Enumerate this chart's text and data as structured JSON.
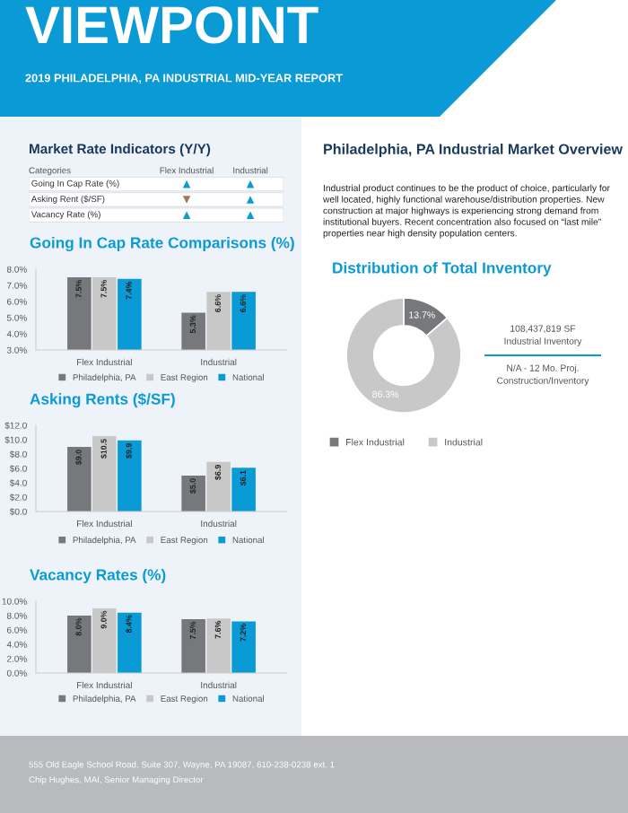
{
  "chart_data": [
    {
      "type": "other",
      "title": "VIEWPOINT",
      "subtitle": "2019 PHILADELPHIA, PA INDUSTRIAL MID-YEAR REPORT",
      "color": "#0a9ad6"
    },
    {
      "type": "other",
      "title": "Market Rate Indicators (Y/Y)",
      "legend_title": "Categories",
      "categories": [
        "Flex Industrial",
        "Industrial"
      ],
      "y_categories": [
        "Going In Cap Rate (%)",
        "Asking Rent ($/SF)",
        "Vacancy Rate (%)"
      ],
      "cell_labels": [
        [
          "▲",
          "▲"
        ],
        [
          "▼",
          "▲"
        ],
        [
          "▲",
          "▲"
        ]
      ],
      "colors": [
        [
          "#0a9ad6",
          "#0a9ad6"
        ],
        [
          "#a0785a",
          "#0a9ad6"
        ],
        [
          "#0a9ad6",
          "#0a9ad6"
        ]
      ]
    },
    {
      "type": "bar",
      "title": "Going In Cap Rate Comparisons (%)",
      "categories": [
        "Flex Industrial",
        "Industrial"
      ],
      "ylim": [
        3.0,
        8.0
      ],
      "yticks": [
        {
          "value": 3.0,
          "label": "3.0%"
        },
        {
          "value": 4.0,
          "label": "4.0%"
        },
        {
          "value": 5.0,
          "label": "5.0%"
        },
        {
          "value": 6.0,
          "label": "6.0%"
        },
        {
          "value": 7.0,
          "label": "7.0%"
        },
        {
          "value": 8.0,
          "label": "8.0%"
        }
      ],
      "legend": "bottom",
      "series": [
        {
          "name": "Philadelphia, PA",
          "color": "#77787b",
          "values": [
            7.5,
            5.3
          ],
          "value_labels": [
            "7.5%",
            "5.3%"
          ]
        },
        {
          "name": "East Region",
          "color": "#c8c8c8",
          "values": [
            7.5,
            6.6
          ],
          "value_labels": [
            "7.5%",
            "6.6%"
          ]
        },
        {
          "name": "National",
          "color": "#0a9ad6",
          "values": [
            7.4,
            6.6
          ],
          "value_labels": [
            "7.4%",
            "6.6%"
          ]
        }
      ]
    },
    {
      "type": "bar",
      "title": "Asking Rents ($/SF)",
      "categories": [
        "Flex Industrial",
        "Industrial"
      ],
      "ylim": [
        0,
        12
      ],
      "yticks": [
        {
          "value": 0,
          "label": "$0.0"
        },
        {
          "value": 2,
          "label": "$2.0"
        },
        {
          "value": 4,
          "label": "$4.0"
        },
        {
          "value": 6,
          "label": "$6.0"
        },
        {
          "value": 8,
          "label": "$8.0"
        },
        {
          "value": 10,
          "label": "$10.0"
        },
        {
          "value": 12,
          "label": "$12.0"
        }
      ],
      "legend": "bottom",
      "series": [
        {
          "name": "Philadelphia, PA",
          "color": "#77787b",
          "values": [
            9.0,
            5.0
          ],
          "value_labels": [
            "$9.0",
            "$5.0"
          ]
        },
        {
          "name": "East Region",
          "color": "#c8c8c8",
          "values": [
            10.5,
            6.9
          ],
          "value_labels": [
            "$10.5",
            "$6.9"
          ]
        },
        {
          "name": "National",
          "color": "#0a9ad6",
          "values": [
            9.9,
            6.1
          ],
          "value_labels": [
            "$9.9",
            "$6.1"
          ]
        }
      ]
    },
    {
      "type": "bar",
      "title": "Vacancy Rates (%)",
      "categories": [
        "Flex Industrial",
        "Industrial"
      ],
      "ylim": [
        0,
        10
      ],
      "yticks": [
        {
          "value": 0,
          "label": "0.0%"
        },
        {
          "value": 2,
          "label": "2.0%"
        },
        {
          "value": 4,
          "label": "4.0%"
        },
        {
          "value": 6,
          "label": "6.0%"
        },
        {
          "value": 8,
          "label": "8.0%"
        },
        {
          "value": 10,
          "label": "10.0%"
        }
      ],
      "legend": "bottom",
      "series": [
        {
          "name": "Philadelphia, PA",
          "color": "#77787b",
          "values": [
            8.0,
            7.5
          ],
          "value_labels": [
            "8.0%",
            "7.5%"
          ]
        },
        {
          "name": "East Region",
          "color": "#c8c8c8",
          "values": [
            9.0,
            7.6
          ],
          "value_labels": [
            "9.0%",
            "7.6%"
          ]
        },
        {
          "name": "National",
          "color": "#0a9ad6",
          "values": [
            8.4,
            7.2
          ],
          "value_labels": [
            "8.4%",
            "7.2%"
          ]
        }
      ]
    },
    {
      "type": "other",
      "title": "Philadelphia, PA Industrial Market Overview",
      "annotations": [
        "Industrial product continues to be the product of choice, particularly for well located, highly functional warehouse/distribution properties. New construction at major highways is experiencing strong demand from institutional buyers. Recent concentration also focused on “last mile” properties near high density population centers."
      ]
    },
    {
      "type": "donut",
      "title": "Distribution of Total Inventory",
      "categories": [
        "Flex Industrial",
        "Industrial"
      ],
      "values": [
        13.7,
        86.3
      ],
      "value_labels": [
        "13.7%",
        "86.3%"
      ],
      "colors": [
        "#77787b",
        "#c8c8c8"
      ],
      "legend": "bottom"
    },
    {
      "type": "other",
      "annotations": [
        "108,437,819 SF\nIndustrial Inventory",
        "N/A - 12 Mo. Proj.\nConstruction/Inventory"
      ]
    },
    {
      "type": "other",
      "annotations": [
        "555 Old Eagle School Road, Suite 307, Wayne, PA 19087, 610-238-0238 ext. 1",
        "Chip Hughes, MAI, Senior Managing Director"
      ]
    }
  ]
}
